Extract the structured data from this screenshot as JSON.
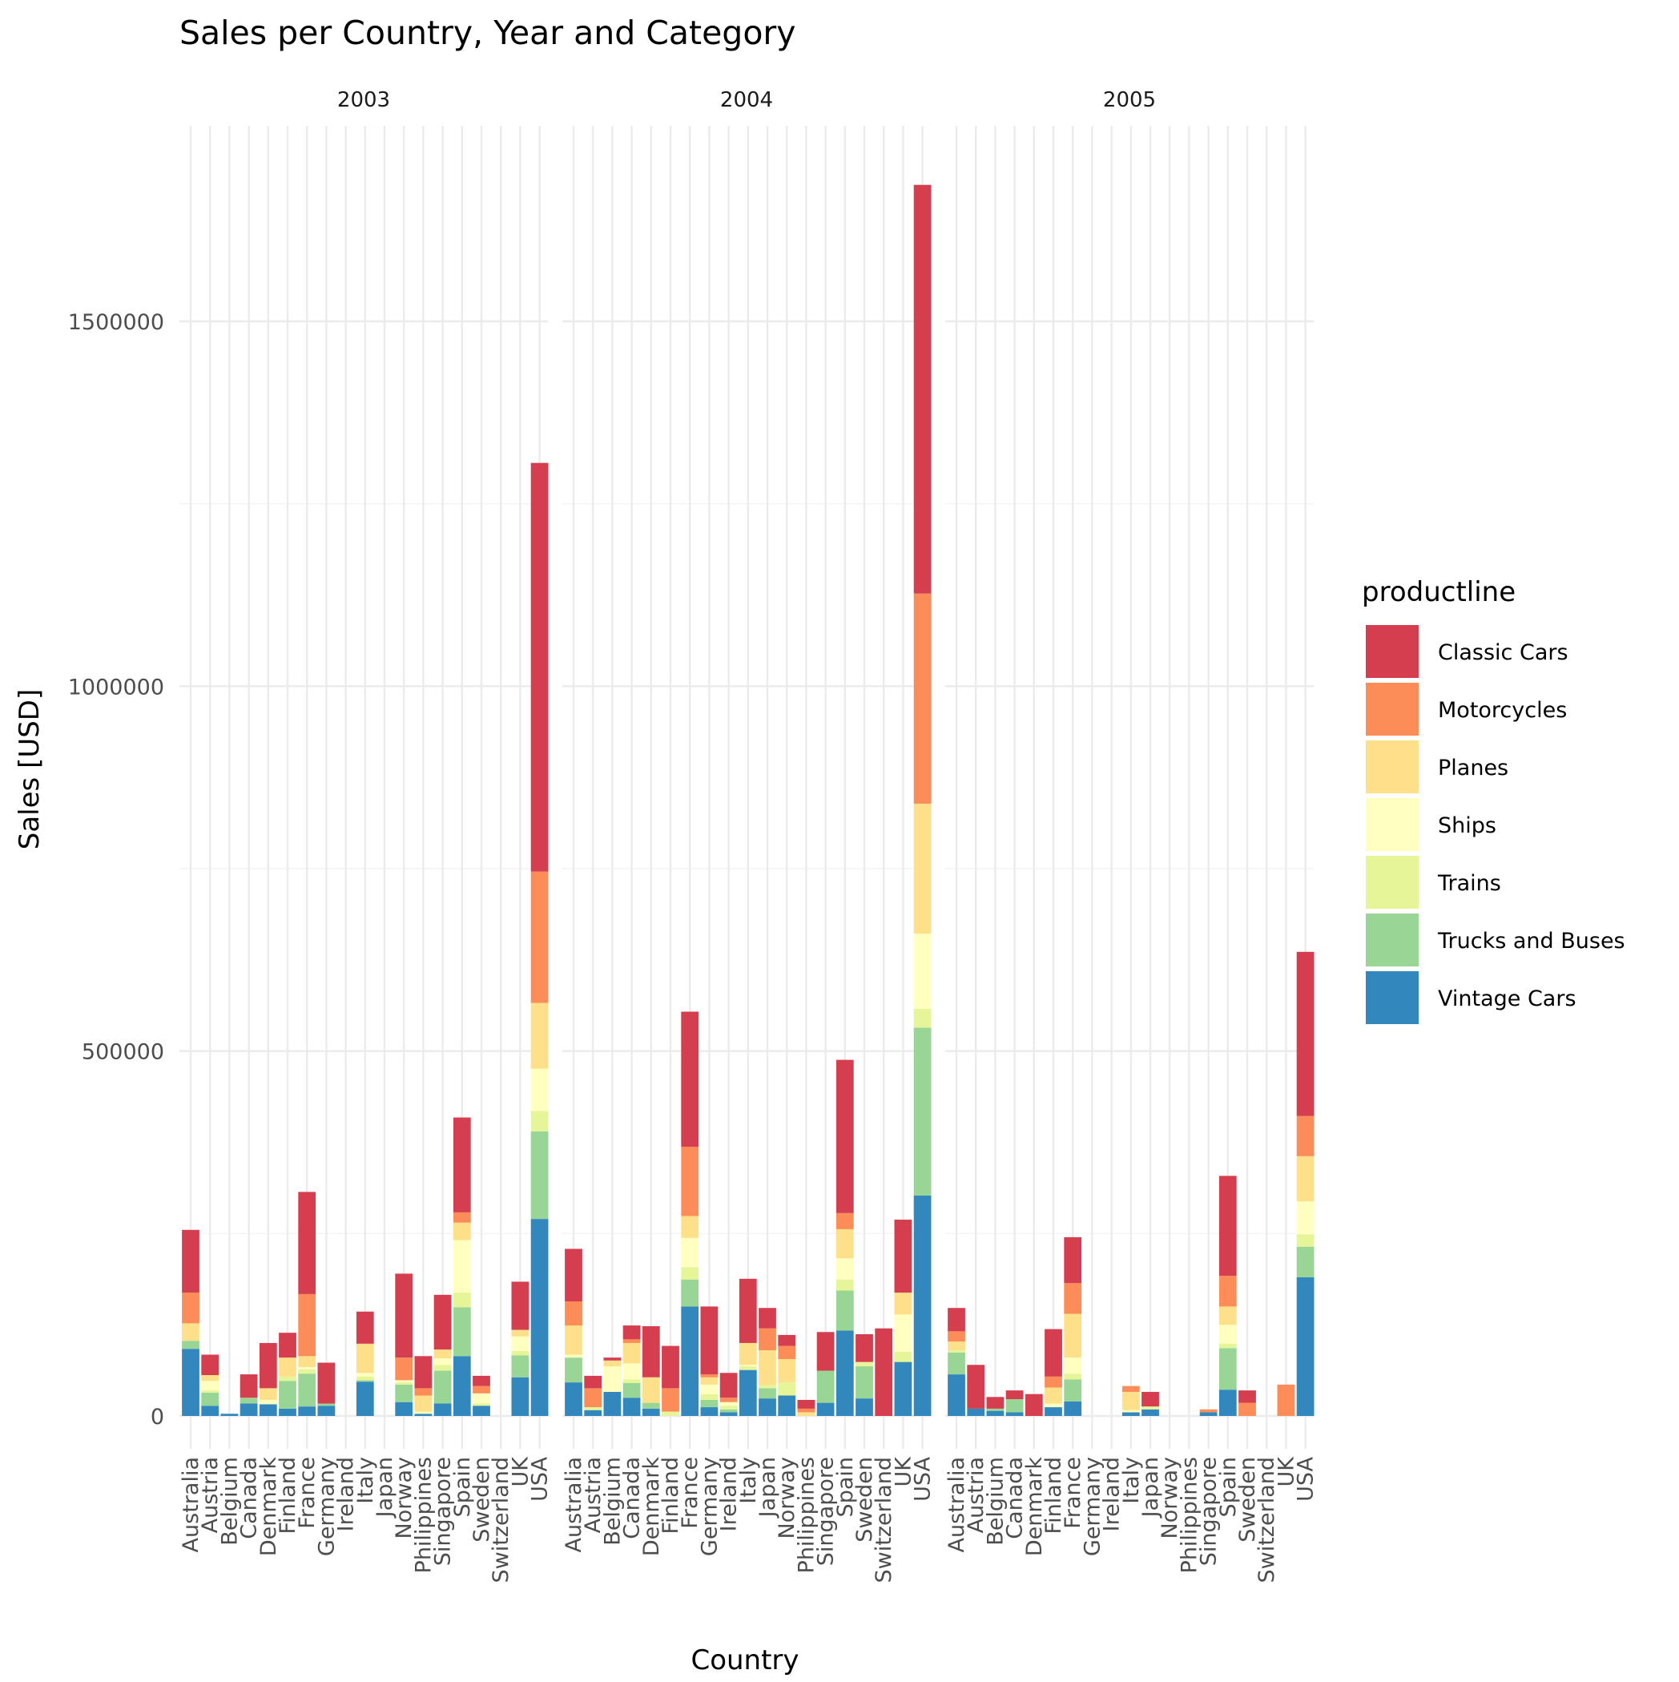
{
  "chart_data": {
    "type": "bar",
    "stacked": true,
    "title": "Sales per Country, Year and Category",
    "xlabel": "Country",
    "ylabel": "Sales [USD]",
    "ylim": [
      0,
      1700000
    ],
    "yticks": [
      0,
      500000,
      1000000,
      1500000
    ],
    "ytick_labels": [
      "0",
      "500000",
      "1000000",
      "1500000"
    ],
    "grid": true,
    "legend_position": "right",
    "legend": {
      "title": "productline",
      "entries": [
        "Classic Cars",
        "Motorcycles",
        "Planes",
        "Ships",
        "Trains",
        "Trucks and Buses",
        "Vintage Cars"
      ]
    },
    "colors": {
      "Classic Cars": "#d53e4f",
      "Motorcycles": "#fc8d59",
      "Planes": "#fee08b",
      "Ships": "#ffffbf",
      "Trains": "#e6f598",
      "Trucks and Buses": "#99d594",
      "Vintage Cars": "#3288bd"
    },
    "stack_order_bottom_to_top": [
      "Vintage Cars",
      "Trucks and Buses",
      "Trains",
      "Ships",
      "Planes",
      "Motorcycles",
      "Classic Cars"
    ],
    "facets": [
      {
        "label": "2003",
        "categories": [
          "Australia",
          "Austria",
          "Belgium",
          "Canada",
          "Denmark",
          "Finland",
          "France",
          "Germany",
          "Ireland",
          "Italy",
          "Japan",
          "Norway",
          "Philippines",
          "Singapore",
          "Spain",
          "Sweden",
          "Switzerland",
          "UK",
          "USA"
        ],
        "series": [
          {
            "name": "Vintage Cars",
            "values": [
              92000,
              14000,
              3000,
              17000,
              16000,
              10000,
              13000,
              14000,
              0,
              47000,
              0,
              19000,
              3000,
              17000,
              82000,
              14000,
              0,
              53000,
              270000
            ]
          },
          {
            "name": "Trucks and Buses",
            "values": [
              11000,
              18000,
              0,
              8000,
              0,
              38000,
              45000,
              3000,
              0,
              2000,
              0,
              24000,
              0,
              45000,
              67000,
              0,
              0,
              30000,
              120000
            ]
          },
          {
            "name": "Trains",
            "values": [
              0,
              3000,
              0,
              0,
              0,
              6000,
              6000,
              0,
              0,
              5000,
              0,
              3000,
              0,
              8000,
              20000,
              3000,
              0,
              6000,
              28000
            ]
          },
          {
            "name": "Ships",
            "values": [
              0,
              13000,
              0,
              0,
              6000,
              0,
              3000,
              0,
              0,
              5000,
              0,
              3000,
              3000,
              9000,
              72000,
              14000,
              0,
              20000,
              58000
            ]
          },
          {
            "name": "Planes",
            "values": [
              24000,
              8000,
              0,
              0,
              16000,
              26000,
              15000,
              0,
              0,
              40000,
              0,
              0,
              22000,
              12000,
              24000,
              0,
              0,
              9000,
              90000
            ]
          },
          {
            "name": "Motorcycles",
            "values": [
              42000,
              0,
              0,
              0,
              0,
              0,
              85000,
              0,
              0,
              0,
              0,
              31000,
              10000,
              0,
              14000,
              10000,
              0,
              0,
              180000
            ]
          },
          {
            "name": "Classic Cars",
            "values": [
              86000,
              28000,
              0,
              32000,
              62000,
              34000,
              140000,
              56000,
              0,
              44000,
              0,
              115000,
              44000,
              75000,
              130000,
              14000,
              0,
              66000,
              560000
            ]
          }
        ]
      },
      {
        "label": "2004",
        "categories": [
          "Australia",
          "Austria",
          "Belgium",
          "Canada",
          "Denmark",
          "Finland",
          "France",
          "Germany",
          "Ireland",
          "Italy",
          "Japan",
          "Norway",
          "Philippines",
          "Singapore",
          "Spain",
          "Sweden",
          "Switzerland",
          "UK",
          "USA"
        ],
        "series": [
          {
            "name": "Vintage Cars",
            "values": [
              46000,
              8000,
              33000,
              25000,
              10000,
              0,
              150000,
              12000,
              5000,
              63000,
              24000,
              28000,
              0,
              18000,
              117000,
              24000,
              0,
              74000,
              302000
            ]
          },
          {
            "name": "Trucks and Buses",
            "values": [
              34000,
              0,
              0,
              20000,
              8000,
              0,
              37000,
              10000,
              4000,
              0,
              14000,
              0,
              0,
              44000,
              55000,
              44000,
              0,
              0,
              230000
            ]
          },
          {
            "name": "Trains",
            "values": [
              0,
              4000,
              0,
              5000,
              0,
              6000,
              17000,
              8000,
              5000,
              5000,
              4000,
              18000,
              0,
              0,
              15000,
              6000,
              0,
              14000,
              26000
            ]
          },
          {
            "name": "Ships",
            "values": [
              4000,
              0,
              35000,
              22000,
              0,
              0,
              40000,
              13000,
              5000,
              2000,
              0,
              0,
              0,
              0,
              29000,
              0,
              0,
              51000,
              103000
            ]
          },
          {
            "name": "Planes",
            "values": [
              40000,
              0,
              8000,
              28000,
              35000,
              0,
              30000,
              10000,
              0,
              30000,
              48000,
              32000,
              5000,
              0,
              40000,
              0,
              0,
              30000,
              178000
            ]
          },
          {
            "name": "Motorcycles",
            "values": [
              33000,
              26000,
              0,
              5000,
              0,
              32000,
              95000,
              4000,
              6000,
              0,
              30000,
              18000,
              5000,
              0,
              22000,
              0,
              0,
              0,
              288000
            ]
          },
          {
            "name": "Classic Cars",
            "values": [
              72000,
              17000,
              4000,
              19000,
              70000,
              58000,
              185000,
              93000,
              34000,
              88000,
              28000,
              15000,
              12000,
              53000,
              210000,
              38000,
              120000,
              100000,
              560000
            ]
          }
        ]
      },
      {
        "label": "2005",
        "categories": [
          "Australia",
          "Austria",
          "Belgium",
          "Canada",
          "Denmark",
          "Finland",
          "France",
          "Germany",
          "Ireland",
          "Italy",
          "Japan",
          "Norway",
          "Philippines",
          "Singapore",
          "Spain",
          "Sweden",
          "Switzerland",
          "UK",
          "USA"
        ],
        "series": [
          {
            "name": "Vintage Cars",
            "values": [
              57000,
              10000,
              7000,
              5000,
              0,
              12000,
              20000,
              0,
              0,
              5000,
              9000,
              0,
              0,
              5000,
              36000,
              0,
              0,
              0,
              190000
            ]
          },
          {
            "name": "Trucks and Buses",
            "values": [
              30000,
              0,
              3000,
              18000,
              0,
              0,
              30000,
              0,
              0,
              0,
              0,
              0,
              0,
              0,
              57000,
              0,
              0,
              0,
              42000
            ]
          },
          {
            "name": "Trains",
            "values": [
              3000,
              0,
              0,
              0,
              0,
              0,
              8000,
              0,
              0,
              0,
              4000,
              0,
              0,
              0,
              6000,
              0,
              0,
              0,
              17000
            ]
          },
          {
            "name": "Ships",
            "values": [
              0,
              0,
              0,
              0,
              0,
              5000,
              22000,
              0,
              0,
              3000,
              0,
              0,
              0,
              0,
              26000,
              0,
              0,
              0,
              45000
            ]
          },
          {
            "name": "Planes",
            "values": [
              12000,
              0,
              0,
              0,
              0,
              22000,
              60000,
              0,
              0,
              25000,
              0,
              0,
              0,
              0,
              25000,
              0,
              0,
              0,
              62000
            ]
          },
          {
            "name": "Motorcycles",
            "values": [
              14000,
              0,
              0,
              0,
              0,
              15000,
              42000,
              0,
              0,
              8000,
              0,
              0,
              0,
              4000,
              42000,
              18000,
              0,
              43000,
              55000
            ]
          },
          {
            "name": "Classic Cars",
            "values": [
              32000,
              60000,
              16000,
              12000,
              30000,
              65000,
              63000,
              0,
              0,
              0,
              20000,
              0,
              0,
              0,
              137000,
              17000,
              0,
              0,
              225000
            ]
          }
        ]
      }
    ]
  }
}
